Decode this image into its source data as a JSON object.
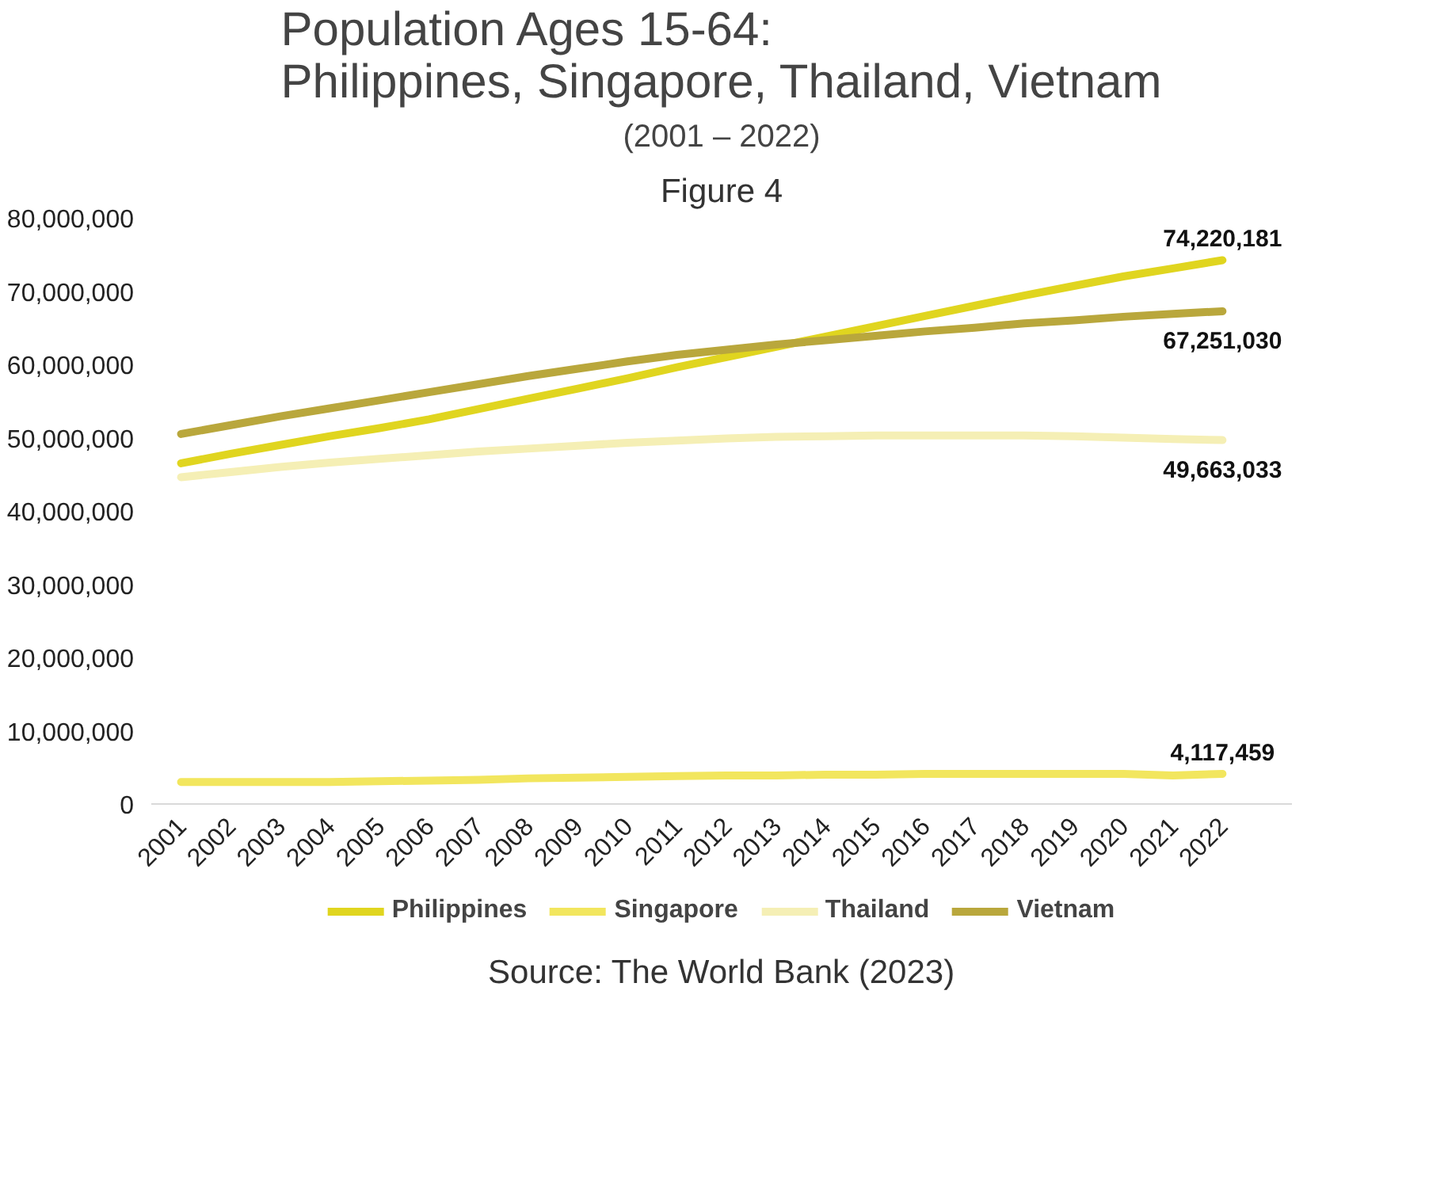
{
  "chart_data": {
    "type": "line",
    "title": "Population Ages 15-64:\nPhilippines, Singapore, Thailand, Vietnam",
    "subtitle": "(2001 – 2022)",
    "annotations": [
      "Figure 4",
      "Source: The World Bank (2023)"
    ],
    "categories": [
      "2001",
      "2002",
      "2003",
      "2004",
      "2005",
      "2006",
      "2007",
      "2008",
      "2009",
      "2010",
      "2011",
      "2012",
      "2013",
      "2014",
      "2015",
      "2016",
      "2017",
      "2018",
      "2019",
      "2020",
      "2021",
      "2022"
    ],
    "series": [
      {
        "name": "Philippines",
        "color": "#e0d51f",
        "values": [
          46500000,
          47800000,
          49000000,
          50200000,
          51300000,
          52500000,
          53900000,
          55300000,
          56700000,
          58100000,
          59600000,
          61000000,
          62400000,
          63800000,
          65200000,
          66600000,
          68000000,
          69400000,
          70700000,
          72000000,
          73100000,
          74220181
        ],
        "value_labels": [
          null,
          null,
          null,
          null,
          null,
          null,
          null,
          null,
          null,
          null,
          null,
          null,
          null,
          null,
          null,
          null,
          null,
          null,
          null,
          null,
          null,
          "74,220,181"
        ]
      },
      {
        "name": "Singapore",
        "color": "#f2e65e",
        "values": [
          3000000,
          3000000,
          3000000,
          3000000,
          3100000,
          3200000,
          3300000,
          3500000,
          3600000,
          3700000,
          3800000,
          3900000,
          3900000,
          4000000,
          4000000,
          4100000,
          4100000,
          4100000,
          4100000,
          4100000,
          3900000,
          4117459
        ],
        "value_labels": [
          null,
          null,
          null,
          null,
          null,
          null,
          null,
          null,
          null,
          null,
          null,
          null,
          null,
          null,
          null,
          null,
          null,
          null,
          null,
          null,
          null,
          "4,117,459"
        ]
      },
      {
        "name": "Thailand",
        "color": "#f5efb5",
        "values": [
          44600000,
          45300000,
          46000000,
          46600000,
          47100000,
          47600000,
          48100000,
          48500000,
          48900000,
          49300000,
          49600000,
          49900000,
          50100000,
          50200000,
          50300000,
          50300000,
          50300000,
          50300000,
          50200000,
          50000000,
          49800000,
          49663033
        ],
        "value_labels": [
          null,
          null,
          null,
          null,
          null,
          null,
          null,
          null,
          null,
          null,
          null,
          null,
          null,
          null,
          null,
          null,
          null,
          null,
          null,
          null,
          null,
          "49,663,033"
        ]
      },
      {
        "name": "Vietnam",
        "color": "#b9a73c",
        "values": [
          50500000,
          51700000,
          52900000,
          54000000,
          55100000,
          56200000,
          57300000,
          58400000,
          59400000,
          60400000,
          61300000,
          62000000,
          62700000,
          63300000,
          63900000,
          64500000,
          65000000,
          65600000,
          66000000,
          66500000,
          66900000,
          67251030
        ],
        "value_labels": [
          null,
          null,
          null,
          null,
          null,
          null,
          null,
          null,
          null,
          null,
          null,
          null,
          null,
          null,
          null,
          null,
          null,
          null,
          null,
          null,
          null,
          "67,251,030"
        ]
      }
    ],
    "ylim": [
      0,
      80000000
    ],
    "yticks": [
      0,
      {
        "value": 10000000,
        "label": "10,000,000"
      },
      {
        "value": 20000000,
        "label": "20,000,000"
      },
      {
        "value": 30000000,
        "label": "30,000,000"
      },
      {
        "value": 40000000,
        "label": "40,000,000"
      },
      {
        "value": 50000000,
        "label": "50,000,000"
      },
      {
        "value": 60000000,
        "label": "60,000,000"
      },
      {
        "value": 70000000,
        "label": "70,000,000"
      },
      {
        "value": 80000000,
        "label": "80,000,000"
      }
    ],
    "grid": false,
    "legend": "bottom",
    "marker": "none",
    "line_style": "solid"
  }
}
